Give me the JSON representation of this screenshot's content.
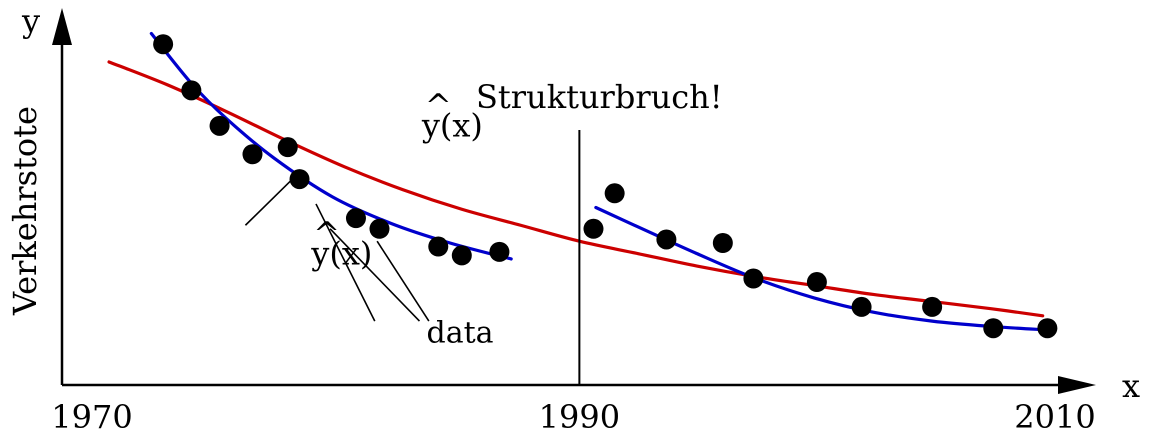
{
  "chart_data": {
    "type": "scatter",
    "title": "",
    "xlabel": "x",
    "ylabel": "y",
    "y_axis_title": "Verkehrstote",
    "x_ticks": [
      1970,
      1990,
      2010
    ],
    "xlim": [
      1968,
      2011.5
    ],
    "ylim": [
      0,
      100
    ],
    "grid": false,
    "colors": {
      "fit_overall": "#cc0000",
      "fit_segment": "#0000cc",
      "points": "#000000",
      "axes": "#000000"
    },
    "data_points": [
      {
        "x": 1972.3,
        "y": 96
      },
      {
        "x": 1973.5,
        "y": 83
      },
      {
        "x": 1974.7,
        "y": 73
      },
      {
        "x": 1976.1,
        "y": 65
      },
      {
        "x": 1977.6,
        "y": 67
      },
      {
        "x": 1978.1,
        "y": 58
      },
      {
        "x": 1980.5,
        "y": 47
      },
      {
        "x": 1981.5,
        "y": 44
      },
      {
        "x": 1984.0,
        "y": 39
      },
      {
        "x": 1985.0,
        "y": 36.5
      },
      {
        "x": 1986.6,
        "y": 37.5
      },
      {
        "x": 1990.6,
        "y": 44
      },
      {
        "x": 1991.5,
        "y": 54
      },
      {
        "x": 1993.7,
        "y": 41
      },
      {
        "x": 1996.1,
        "y": 40
      },
      {
        "x": 1997.4,
        "y": 30
      },
      {
        "x": 2000.1,
        "y": 29
      },
      {
        "x": 2002.0,
        "y": 22
      },
      {
        "x": 2005.0,
        "y": 22
      },
      {
        "x": 2007.6,
        "y": 16
      },
      {
        "x": 2009.9,
        "y": 16
      }
    ],
    "series": [
      {
        "name": "y(x)",
        "hat": "^",
        "color": "#cc0000",
        "x": [
          1970,
          1972.5,
          1975,
          1977.5,
          1980,
          1982.5,
          1985,
          1987.5,
          1990,
          1992.5,
          1995,
          1997.5,
          2000,
          2002.5,
          2005,
          2007.5,
          2009.7
        ],
        "y": [
          91,
          84.5,
          77,
          69,
          61.5,
          55,
          49.5,
          45,
          40.5,
          37,
          33.5,
          30.5,
          28,
          25.5,
          23.5,
          21.5,
          19.5
        ]
      },
      {
        "name": "y(x)",
        "hat": "^",
        "color": "#0000cc",
        "x": [
          1971.8,
          1973.5,
          1975,
          1977,
          1979.5,
          1982,
          1984.5,
          1987.1
        ],
        "y": [
          99,
          85,
          75,
          64,
          53,
          45.5,
          40,
          35.5
        ]
      },
      {
        "name": "",
        "color": "#0000cc",
        "x": [
          1990.7,
          1993,
          1995,
          1997.5,
          2000,
          2002.5,
          2005,
          2007.5,
          2009.9
        ],
        "y": [
          50,
          43,
          37,
          30,
          24.5,
          20.5,
          18,
          16.5,
          15.5
        ]
      }
    ],
    "structural_break": {
      "x": 1990,
      "label": "Strukturbruch!"
    },
    "annotations": {
      "data_label": "data",
      "data_label_pos": {
        "x": 1983.5,
        "y": 12
      },
      "data_leaders": [
        {
          "x": 1978.8,
          "y": 51,
          "label_pt": {
            "x": 1981.3,
            "y": 18
          }
        },
        {
          "x": 1979.4,
          "y": 44,
          "label_pt": {
            "x": 1983.2,
            "y": 18
          }
        },
        {
          "x": 1981.4,
          "y": 40.5,
          "label_pt": {
            "x": 1983.6,
            "y": 18
          }
        }
      ],
      "fit_overall_label_pos": {
        "x": 1983.3,
        "y": 70
      },
      "fit_segment_label_pos": {
        "x": 1978.6,
        "y": 34
      },
      "fit_segment_leader": {
        "x": 1977.8,
        "y": 58,
        "label_pt": {
          "x": 1975.8,
          "y": 45
        }
      }
    }
  }
}
